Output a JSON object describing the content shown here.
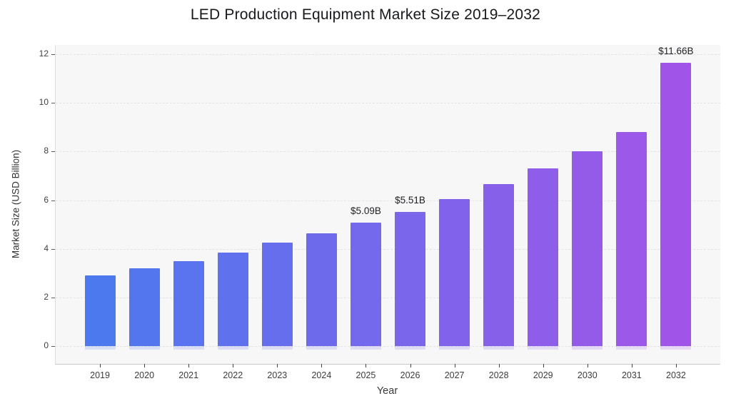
{
  "page": {
    "background": "#ffffff"
  },
  "chart_data": {
    "type": "bar",
    "title": "LED Production Equipment Market Size 2019–2032",
    "xlabel": "Year",
    "ylabel": "Market Size (USD Billion)",
    "categories": [
      "2019",
      "2020",
      "2021",
      "2022",
      "2023",
      "2024",
      "2025",
      "2026",
      "2027",
      "2028",
      "2029",
      "2030",
      "2031",
      "2032"
    ],
    "values": [
      2.9,
      3.2,
      3.5,
      3.85,
      4.25,
      4.65,
      5.09,
      5.51,
      6.05,
      6.65,
      7.3,
      8.0,
      8.8,
      11.66
    ],
    "bar_labels": [
      "",
      "",
      "",
      "",
      "",
      "",
      "$5.09B",
      "$5.51B",
      "",
      "",
      "",
      "",
      "",
      "$11.66B"
    ],
    "yticks": [
      0,
      2,
      4,
      6,
      8,
      10,
      12
    ],
    "ylim": [
      -0.7,
      12.5
    ],
    "grid": true,
    "legend": false,
    "bar_color_start": "#4d79ef",
    "bar_color_end": "#a155e8",
    "plot_bg": "#f7f7f8",
    "grid_color": "#e2e2e7"
  }
}
